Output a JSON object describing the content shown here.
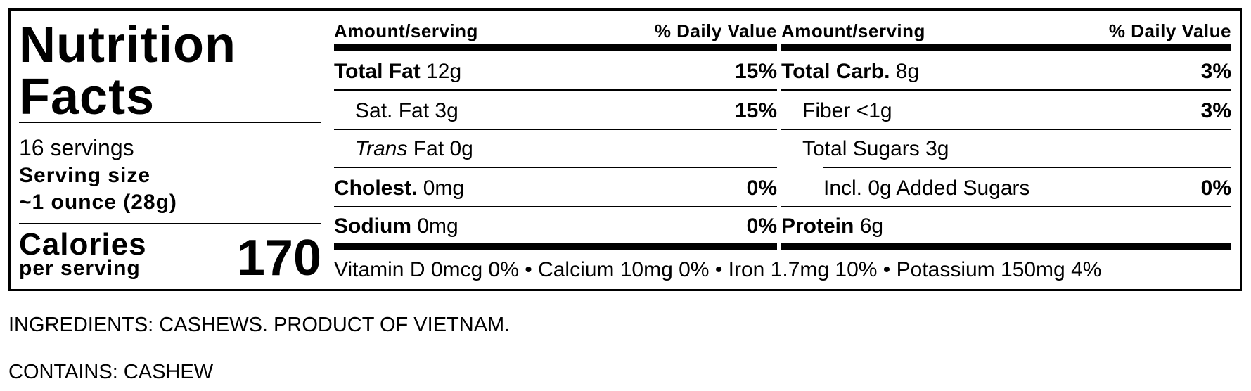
{
  "title_line1": "Nutrition",
  "title_line2": "Facts",
  "servings": "16 servings",
  "serving_size_label": "Serving size",
  "serving_size_value": "~1 ounce (28g)",
  "calories_label": "Calories",
  "calories_sub": "per serving",
  "calories_value": "170",
  "header": {
    "amount": "Amount/serving",
    "dv": "% Daily Value"
  },
  "left_rows": [
    {
      "bold": "Total Fat",
      "text": " 12g",
      "dv": "15%"
    },
    {
      "bold": "",
      "text": "Sat. Fat 3g",
      "dv": "15%"
    },
    {
      "italic": "Trans",
      "text": " Fat 0g",
      "dv": ""
    },
    {
      "bold": "Cholest.",
      "text": " 0mg",
      "dv": "0%"
    },
    {
      "bold": "Sodium",
      "text": " 0mg",
      "dv": "0%"
    }
  ],
  "right_rows": [
    {
      "bold": "Total Carb.",
      "text": " 8g",
      "dv": "3%"
    },
    {
      "bold": "",
      "text": "Fiber <1g",
      "dv": "3%"
    },
    {
      "bold": "",
      "text": "Total Sugars 3g",
      "dv": ""
    },
    {
      "bold": "",
      "text": "Incl. 0g Added Sugars",
      "dv": "0%"
    },
    {
      "bold": "Protein",
      "text": " 6g",
      "dv": ""
    }
  ],
  "vitamins": "Vitamin D 0mcg 0% • Calcium 10mg 0% • Iron 1.7mg 10% • Potassium 150mg 4%",
  "ingredients": "INGREDIENTS: CASHEWS. PRODUCT OF VIETNAM.",
  "contains": "CONTAINS: CASHEW"
}
